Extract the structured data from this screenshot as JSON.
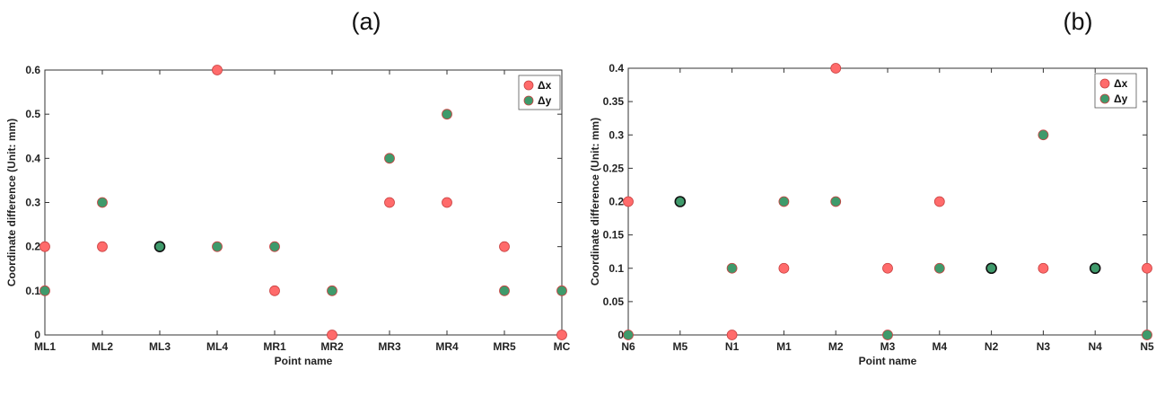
{
  "chart_data": [
    {
      "type": "scatter",
      "panel_label": "(a)",
      "xlabel": "Point name",
      "ylabel": "Coordinate difference (Unit: mm)",
      "categories": [
        "ML1",
        "ML2",
        "ML3",
        "ML4",
        "MR1",
        "MR2",
        "MR3",
        "MR4",
        "MR5",
        "MC"
      ],
      "ylim": [
        0,
        0.6
      ],
      "yticks": [
        0,
        0.1,
        0.2,
        0.3,
        0.4,
        0.5,
        0.6
      ],
      "ytick_labels": [
        "0",
        "0.1",
        "0.2",
        "0.3",
        "0.4",
        "0.5",
        "0.6"
      ],
      "legend_position": "top-right",
      "series": [
        {
          "name": "Δx",
          "color": "#ff6b6b",
          "values": [
            0.2,
            0.2,
            0.2,
            0.6,
            0.1,
            0.0,
            0.3,
            0.3,
            0.2,
            0.0
          ]
        },
        {
          "name": "Δy",
          "color": "#3f9a6b",
          "values": [
            0.1,
            0.3,
            0.2,
            0.2,
            0.2,
            0.1,
            0.4,
            0.5,
            0.1,
            0.1
          ]
        }
      ]
    },
    {
      "type": "scatter",
      "panel_label": "(b)",
      "xlabel": "Point name",
      "ylabel": "Coordinate difference (Unit: mm)",
      "categories": [
        "N6",
        "M5",
        "N1",
        "M1",
        "M2",
        "M3",
        "M4",
        "N2",
        "N3",
        "N4",
        "N5"
      ],
      "ylim": [
        0,
        0.4
      ],
      "yticks": [
        0,
        0.05,
        0.1,
        0.15,
        0.2,
        0.25,
        0.3,
        0.35,
        0.4
      ],
      "ytick_labels": [
        "0",
        "0.05",
        "0.1",
        "0.15",
        "0.2",
        "0.25",
        "0.3",
        "0.35",
        "0.4"
      ],
      "legend_position": "top-right",
      "series": [
        {
          "name": "Δx",
          "color": "#ff6b6b",
          "values": [
            0.2,
            0.2,
            0.0,
            0.1,
            0.4,
            0.1,
            0.2,
            0.1,
            0.1,
            0.1,
            0.1
          ]
        },
        {
          "name": "Δy",
          "color": "#3f9a6b",
          "values": [
            0.0,
            0.2,
            0.1,
            0.2,
            0.2,
            0.0,
            0.1,
            0.1,
            0.3,
            0.1,
            0.0
          ]
        }
      ]
    }
  ]
}
